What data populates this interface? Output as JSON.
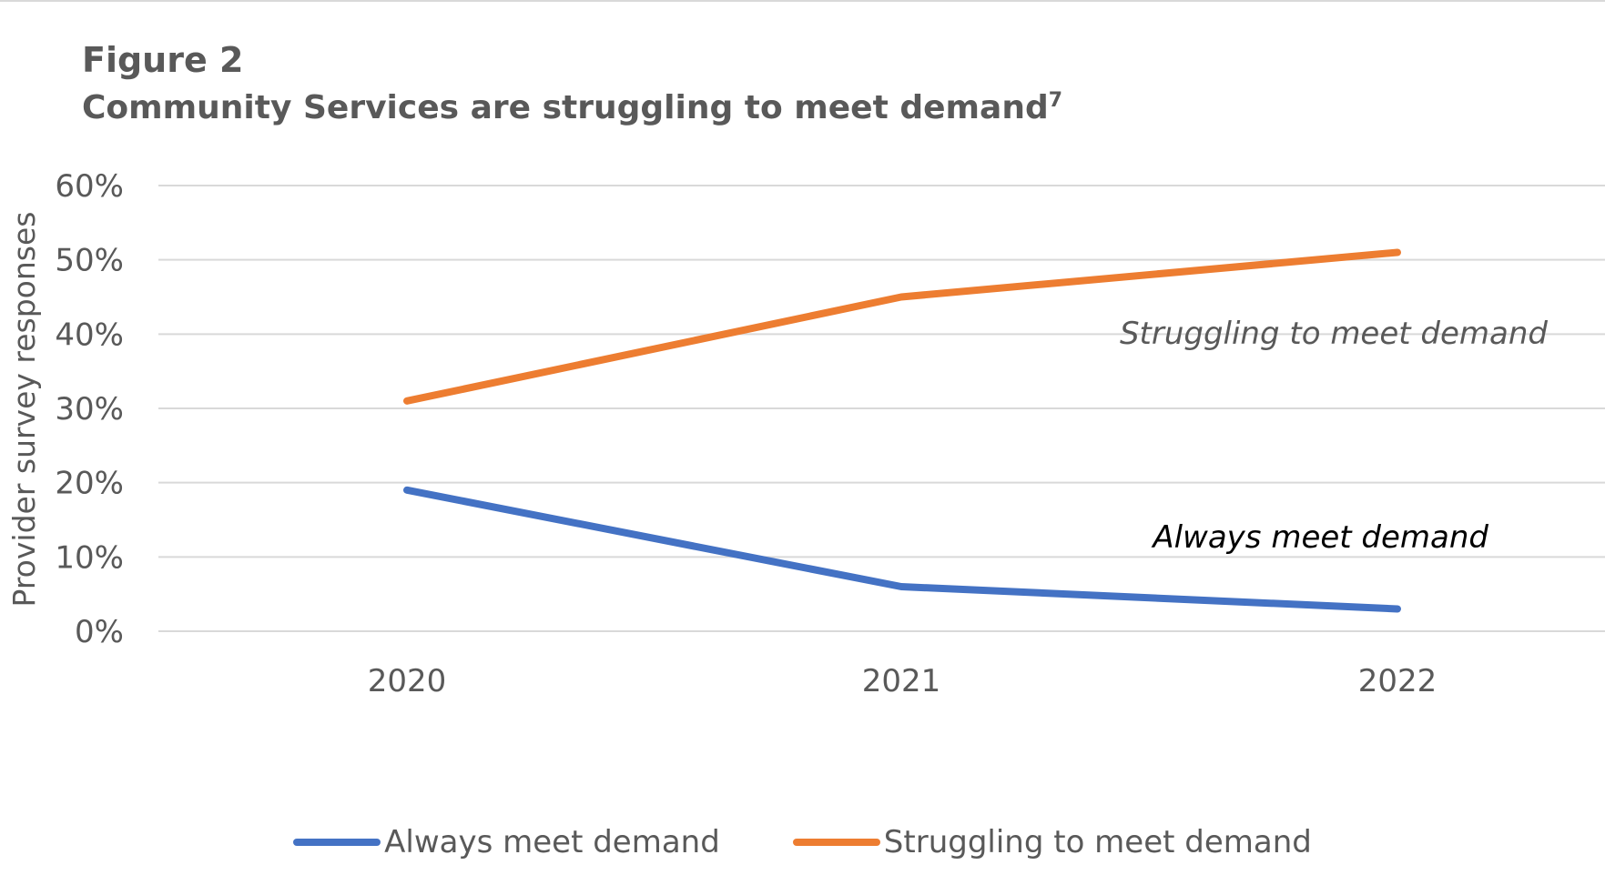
{
  "figure": {
    "label": "Figure 2",
    "title": "Community Services are struggling to meet demand",
    "footnote_mark": "7"
  },
  "chart_data": {
    "type": "line",
    "title": "Community Services are struggling to meet demand",
    "xlabel": "",
    "ylabel": "Provider survey responses",
    "categories": [
      "2020",
      "2021",
      "2022"
    ],
    "ylim": [
      0,
      60
    ],
    "yticks": [
      0,
      10,
      20,
      30,
      40,
      50,
      60
    ],
    "ytick_labels": [
      "0%",
      "10%",
      "20%",
      "30%",
      "40%",
      "50%",
      "60%"
    ],
    "grid": true,
    "legend_position": "bottom",
    "series": [
      {
        "name": "Always meet demand",
        "values": [
          19,
          6,
          3
        ],
        "color": "#4472c4",
        "annotation": "Always meet demand",
        "annotation_color": "#000000"
      },
      {
        "name": "Struggling to meet demand",
        "values": [
          31,
          45,
          51
        ],
        "color": "#ed7d31",
        "annotation": "Struggling to meet demand",
        "annotation_color": "#595959"
      }
    ]
  }
}
